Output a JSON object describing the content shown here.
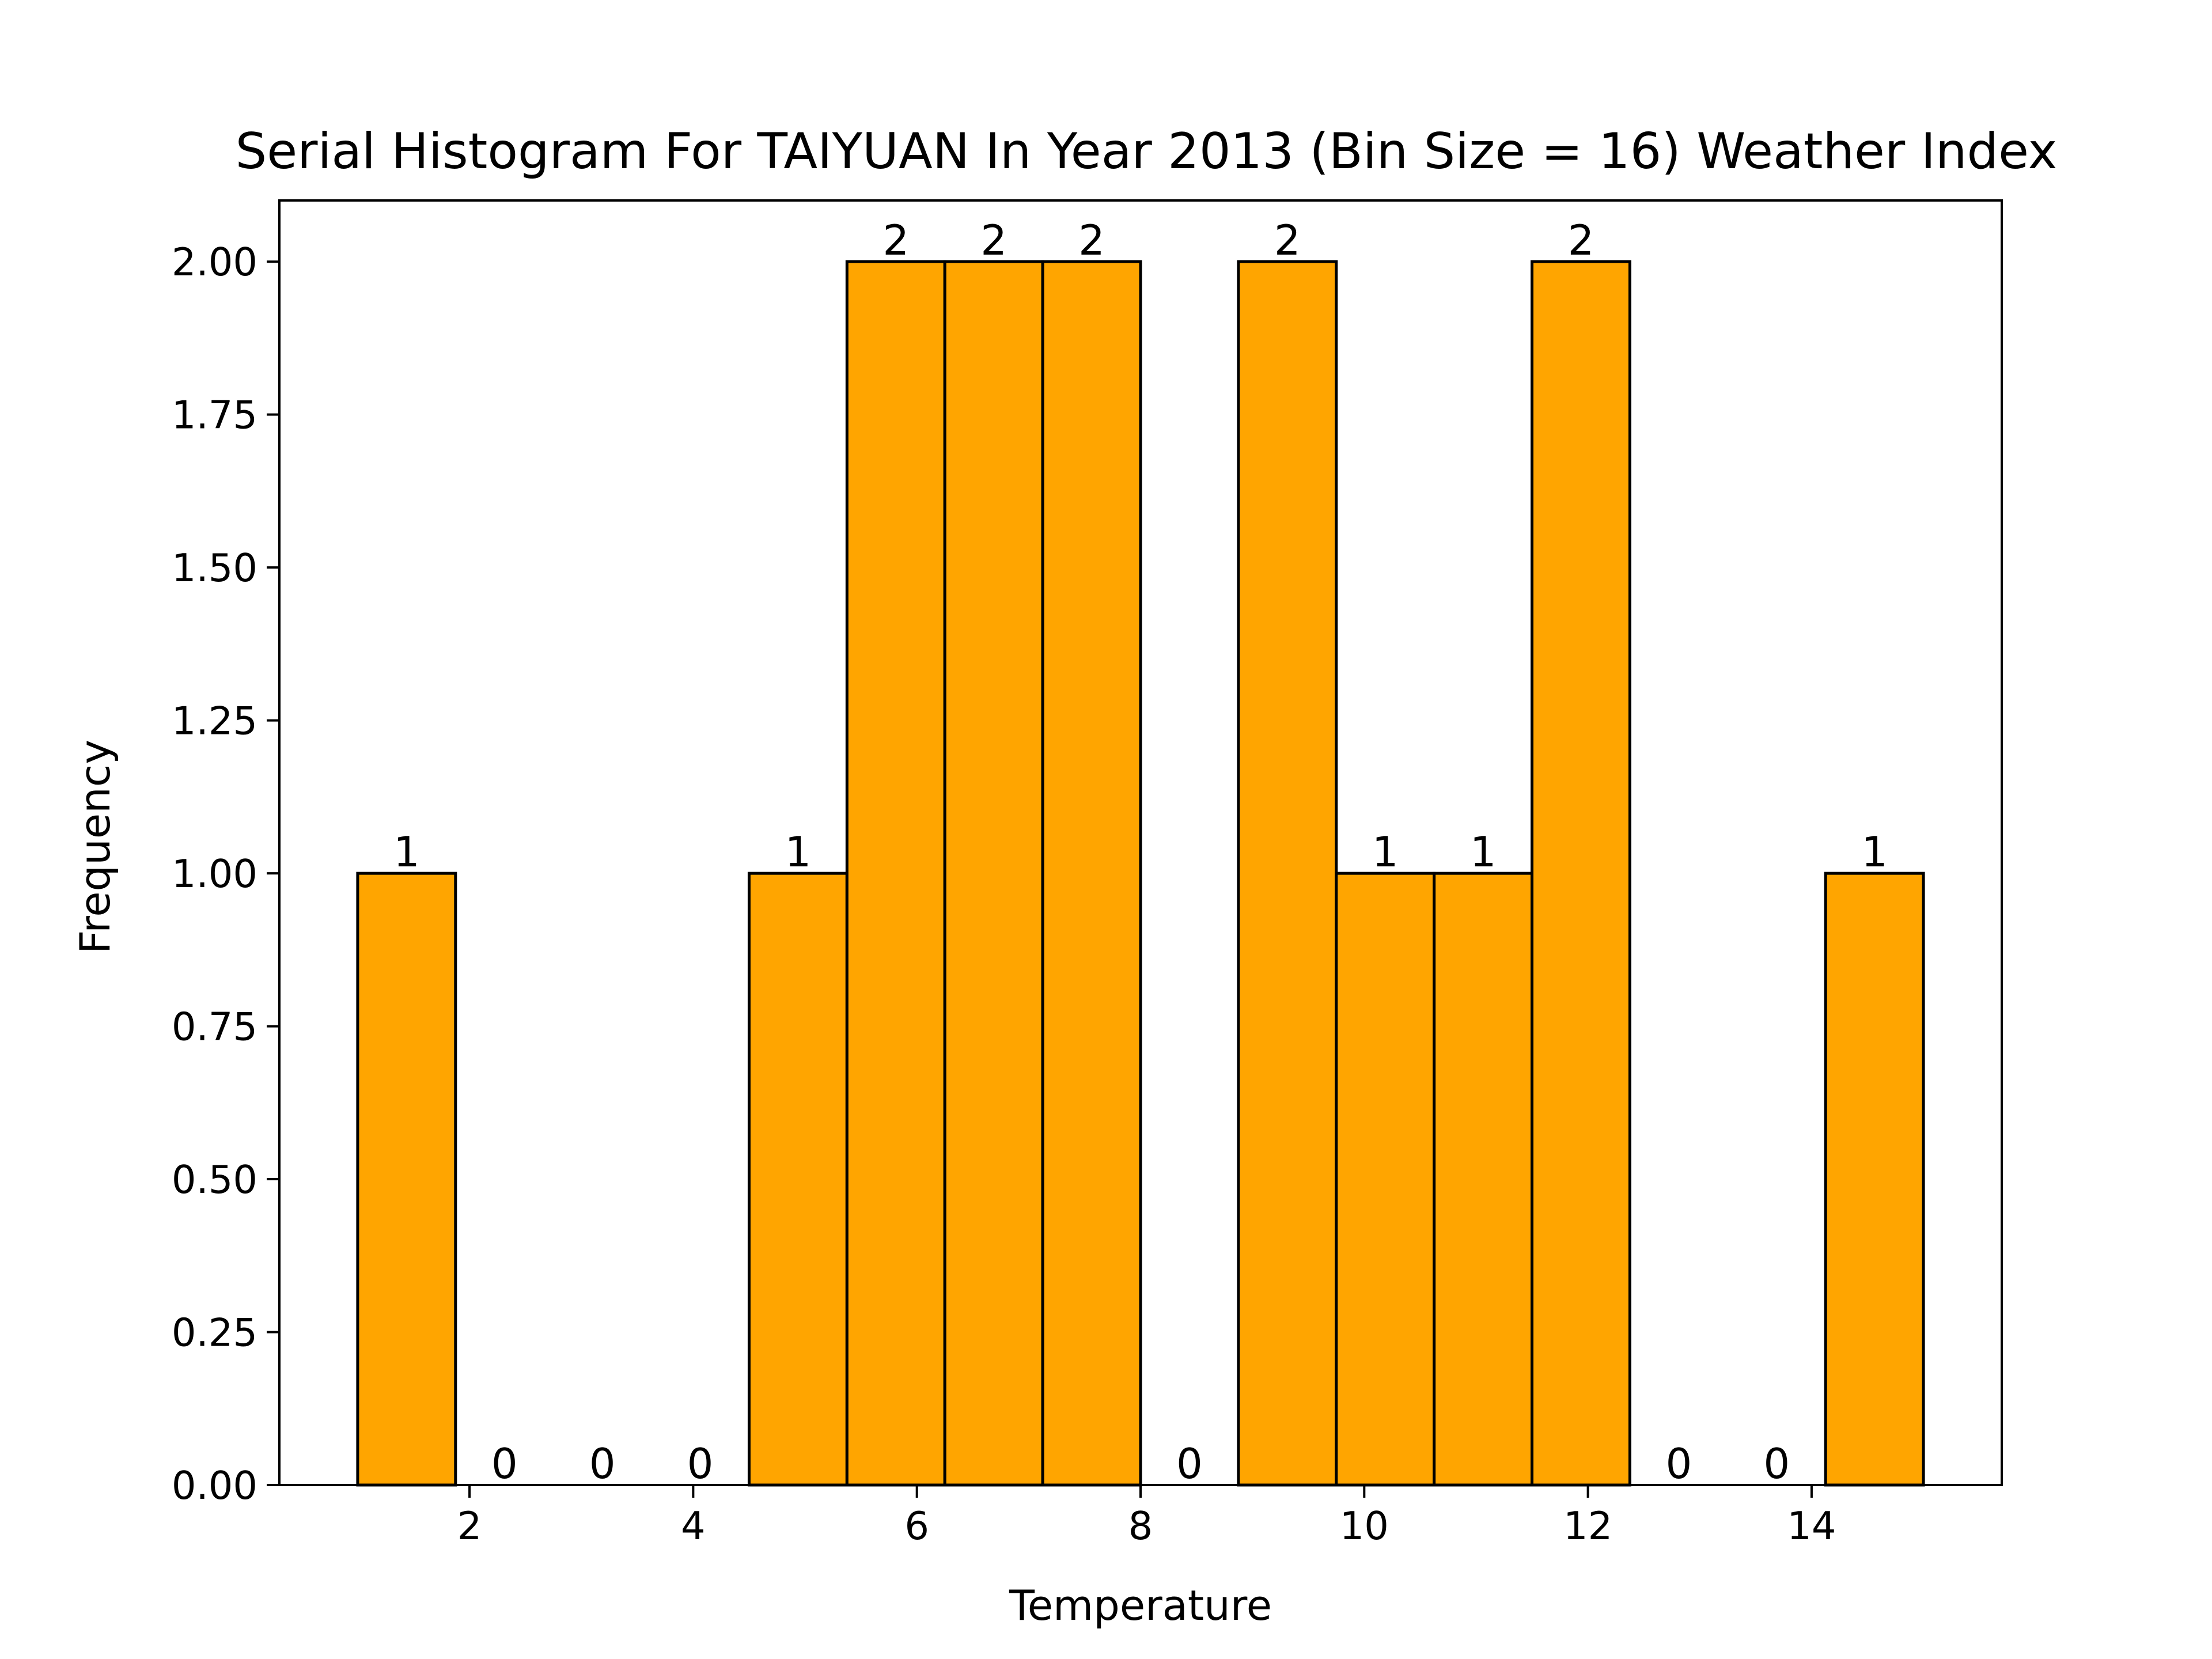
{
  "chart_data": {
    "type": "bar",
    "title": "Serial Histogram For TAIYUAN In Year 2013 (Bin Size = 16) Weather Index",
    "xlabel": "Temperature",
    "ylabel": "Frequency",
    "bar_color": "#FFA500",
    "edge_color": "#000000",
    "xlim": [
      0.3,
      15.7
    ],
    "ylim": [
      0,
      2.1
    ],
    "bins": {
      "start": 1.0,
      "end": 15.0,
      "count": 16,
      "counts": [
        1,
        0,
        0,
        0,
        1,
        2,
        2,
        2,
        0,
        2,
        1,
        1,
        2,
        0,
        0,
        1
      ],
      "labels": [
        "1",
        "0",
        "0",
        "0",
        "1",
        "2",
        "2",
        "2",
        "0",
        "2",
        "1",
        "1",
        "2",
        "0",
        "0",
        "1"
      ]
    },
    "x_ticks": [
      {
        "value": 2,
        "label": "2"
      },
      {
        "value": 4,
        "label": "4"
      },
      {
        "value": 6,
        "label": "6"
      },
      {
        "value": 8,
        "label": "8"
      },
      {
        "value": 10,
        "label": "10"
      },
      {
        "value": 12,
        "label": "12"
      },
      {
        "value": 14,
        "label": "14"
      }
    ],
    "y_ticks": [
      {
        "value": 0.0,
        "label": "0.00"
      },
      {
        "value": 0.25,
        "label": "0.25"
      },
      {
        "value": 0.5,
        "label": "0.50"
      },
      {
        "value": 0.75,
        "label": "0.75"
      },
      {
        "value": 1.0,
        "label": "1.00"
      },
      {
        "value": 1.25,
        "label": "1.25"
      },
      {
        "value": 1.5,
        "label": "1.50"
      },
      {
        "value": 1.75,
        "label": "1.75"
      },
      {
        "value": 2.0,
        "label": "2.00"
      }
    ],
    "grid": false,
    "legend": "none"
  }
}
